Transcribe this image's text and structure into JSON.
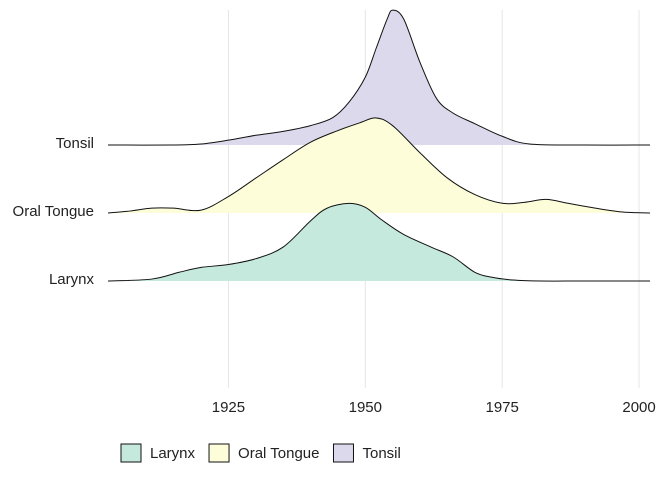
{
  "chart_data": {
    "type": "ridgeline",
    "title": "",
    "xlabel": "",
    "ylabel": "",
    "xlim": [
      1903,
      2002
    ],
    "x_ticks": [
      1925,
      1950,
      1975,
      2000
    ],
    "x_tick_labels": [
      "1925",
      "1950",
      "1975",
      "2000"
    ],
    "grid": "vertical major gridlines",
    "legend": {
      "position": "bottom-left",
      "entries": [
        "Larynx",
        "Oral Tongue",
        "Tonsil"
      ]
    },
    "series": [
      {
        "name": "Larynx",
        "color": "#c6e9de",
        "x": [
          1903,
          1911,
          1916,
          1920,
          1925,
          1930,
          1935,
          1940,
          1943,
          1947,
          1950,
          1953,
          1957,
          1962,
          1966,
          1970,
          1973,
          1977,
          1982,
          1990,
          2002
        ],
        "density": [
          0,
          0.02,
          0.09,
          0.14,
          0.17,
          0.23,
          0.35,
          0.62,
          0.75,
          0.8,
          0.76,
          0.63,
          0.48,
          0.35,
          0.25,
          0.09,
          0.04,
          0.01,
          0,
          0,
          0
        ]
      },
      {
        "name": "Oral Tongue",
        "color": "#fdfed9",
        "x": [
          1903,
          1907,
          1911,
          1915,
          1920,
          1925,
          1930,
          1935,
          1940,
          1945,
          1949,
          1952,
          1955,
          1960,
          1965,
          1970,
          1975,
          1979,
          1983,
          1987,
          1992,
          1997,
          2002
        ],
        "density": [
          0,
          0.02,
          0.05,
          0.05,
          0.03,
          0.17,
          0.36,
          0.55,
          0.73,
          0.85,
          0.93,
          0.98,
          0.9,
          0.62,
          0.36,
          0.19,
          0.1,
          0.11,
          0.14,
          0.1,
          0.05,
          0.01,
          0
        ]
      },
      {
        "name": "Tonsil",
        "color": "#dcd9ec",
        "x": [
          1903,
          1915,
          1920,
          1925,
          1930,
          1935,
          1940,
          1944,
          1947,
          1950,
          1952,
          1954,
          1955,
          1957,
          1960,
          1963,
          1966,
          1970,
          1975,
          1980,
          1990,
          2002
        ],
        "density": [
          0,
          0,
          0.01,
          0.05,
          0.1,
          0.14,
          0.2,
          0.28,
          0.44,
          0.7,
          1.0,
          1.3,
          1.39,
          1.3,
          0.85,
          0.48,
          0.33,
          0.22,
          0.09,
          0.01,
          0,
          0
        ]
      }
    ]
  }
}
